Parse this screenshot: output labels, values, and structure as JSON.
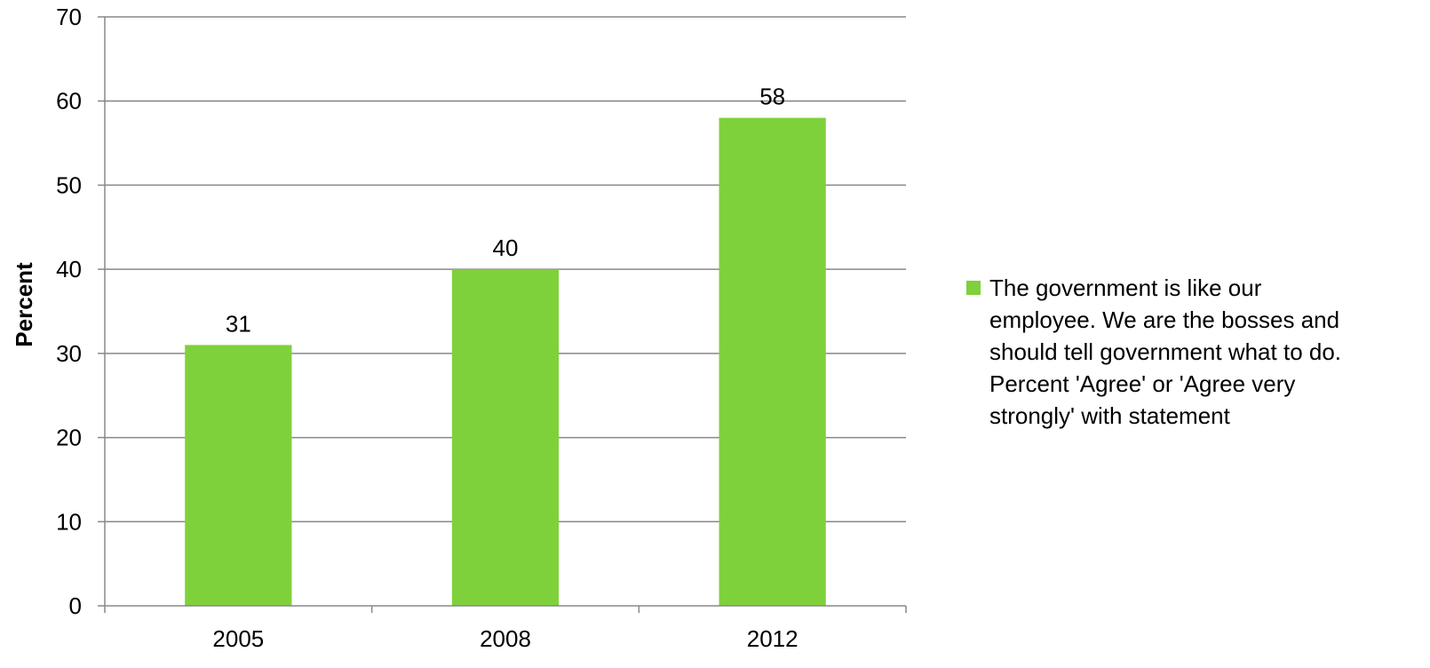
{
  "chart_data": {
    "type": "bar",
    "categories": [
      "2005",
      "2008",
      "2012"
    ],
    "series": [
      {
        "name": "The government is like our employee. We are the bosses and should tell government what to do. Percent 'Agree' or 'Agree very strongly' with statement",
        "values": [
          31,
          40,
          58
        ],
        "color": "#7fd13b"
      }
    ],
    "data_labels": [
      "31",
      "40",
      "58"
    ],
    "ylabel": "Percent",
    "xlabel": "",
    "title": "",
    "ylim": [
      0,
      70
    ],
    "yticks": [
      0,
      10,
      20,
      30,
      40,
      50,
      60,
      70
    ],
    "ytick_labels": [
      "0",
      "10",
      "20",
      "30",
      "40",
      "50",
      "60",
      "70"
    ],
    "grid": "horizontal",
    "legend_position": "right",
    "legend_lines": [
      "The government is like our",
      "employee. We are the bosses and",
      "should tell government what to do.",
      "Percent 'Agree' or 'Agree very",
      "strongly' with statement"
    ]
  },
  "colors": {
    "bar": "#7fd13b",
    "grid": "#888888",
    "axis": "#888888",
    "text": "#000000"
  }
}
